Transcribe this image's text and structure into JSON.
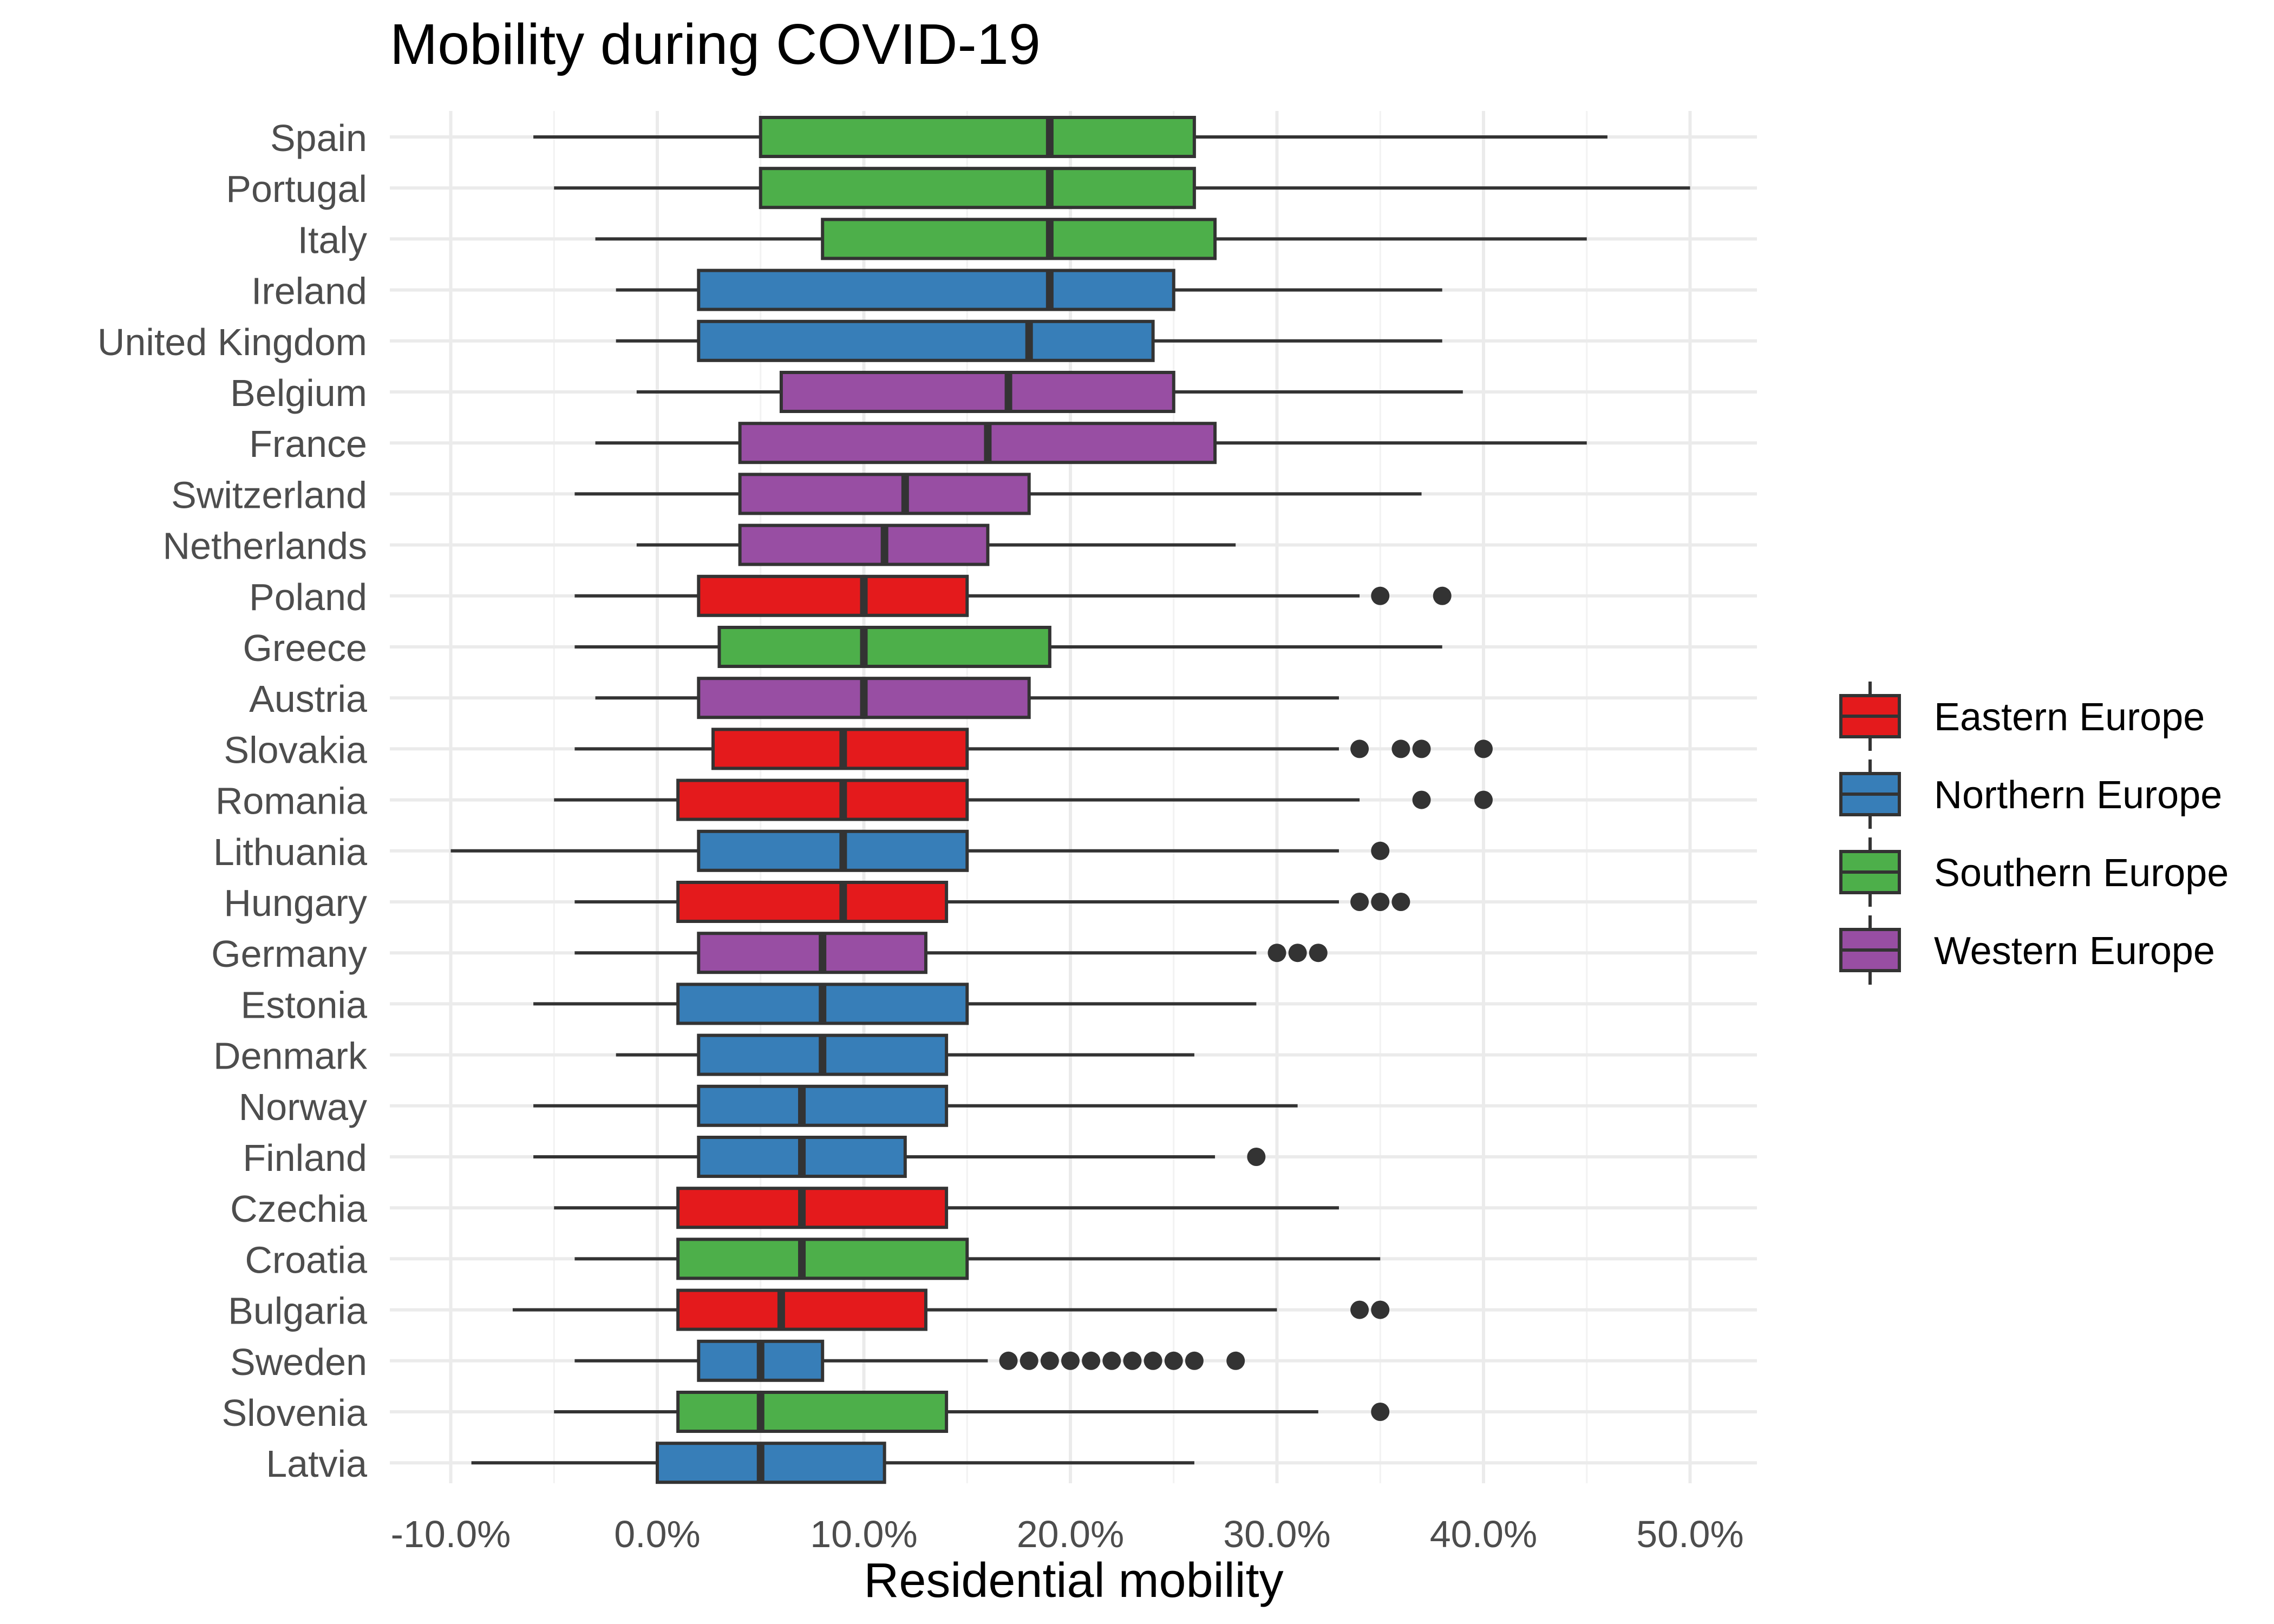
{
  "chart_data": {
    "type": "boxplot",
    "title": "Mobility during COVID-19",
    "xlabel": "Residential mobility",
    "ylabel": "",
    "xlim": [
      -0.13,
      0.53
    ],
    "x_ticks": [
      -0.1,
      0.0,
      0.1,
      0.2,
      0.3,
      0.4,
      0.5
    ],
    "x_tick_labels": [
      "-10.0%",
      "0.0%",
      "10.0%",
      "20.0%",
      "30.0%",
      "40.0%",
      "50.0%"
    ],
    "grid": true,
    "legend_position": "right",
    "groups": [
      {
        "name": "Eastern Europe",
        "color": "#e41a1c"
      },
      {
        "name": "Northern Europe",
        "color": "#377eb8"
      },
      {
        "name": "Southern Europe",
        "color": "#4daf4a"
      },
      {
        "name": "Western Europe",
        "color": "#984ea3"
      }
    ],
    "boxes": [
      {
        "country": "Spain",
        "group": "Southern Europe",
        "whisker_low": -0.06,
        "q1": 0.05,
        "median": 0.19,
        "q3": 0.26,
        "whisker_high": 0.46,
        "outliers": []
      },
      {
        "country": "Portugal",
        "group": "Southern Europe",
        "whisker_low": -0.05,
        "q1": 0.05,
        "median": 0.19,
        "q3": 0.26,
        "whisker_high": 0.5,
        "outliers": []
      },
      {
        "country": "Italy",
        "group": "Southern Europe",
        "whisker_low": -0.03,
        "q1": 0.08,
        "median": 0.19,
        "q3": 0.27,
        "whisker_high": 0.45,
        "outliers": []
      },
      {
        "country": "Ireland",
        "group": "Northern Europe",
        "whisker_low": -0.02,
        "q1": 0.02,
        "median": 0.19,
        "q3": 0.25,
        "whisker_high": 0.38,
        "outliers": []
      },
      {
        "country": "United Kingdom",
        "group": "Northern Europe",
        "whisker_low": -0.02,
        "q1": 0.02,
        "median": 0.18,
        "q3": 0.24,
        "whisker_high": 0.38,
        "outliers": []
      },
      {
        "country": "Belgium",
        "group": "Western Europe",
        "whisker_low": -0.01,
        "q1": 0.06,
        "median": 0.17,
        "q3": 0.25,
        "whisker_high": 0.39,
        "outliers": []
      },
      {
        "country": "France",
        "group": "Western Europe",
        "whisker_low": -0.03,
        "q1": 0.04,
        "median": 0.16,
        "q3": 0.27,
        "whisker_high": 0.45,
        "outliers": []
      },
      {
        "country": "Switzerland",
        "group": "Western Europe",
        "whisker_low": -0.04,
        "q1": 0.04,
        "median": 0.12,
        "q3": 0.18,
        "whisker_high": 0.37,
        "outliers": []
      },
      {
        "country": "Netherlands",
        "group": "Western Europe",
        "whisker_low": -0.01,
        "q1": 0.04,
        "median": 0.11,
        "q3": 0.16,
        "whisker_high": 0.28,
        "outliers": []
      },
      {
        "country": "Poland",
        "group": "Eastern Europe",
        "whisker_low": -0.04,
        "q1": 0.02,
        "median": 0.1,
        "q3": 0.15,
        "whisker_high": 0.34,
        "outliers": [
          0.35,
          0.38
        ]
      },
      {
        "country": "Greece",
        "group": "Southern Europe",
        "whisker_low": -0.04,
        "q1": 0.03,
        "median": 0.1,
        "q3": 0.19,
        "whisker_high": 0.38,
        "outliers": []
      },
      {
        "country": "Austria",
        "group": "Western Europe",
        "whisker_low": -0.03,
        "q1": 0.02,
        "median": 0.1,
        "q3": 0.18,
        "whisker_high": 0.33,
        "outliers": []
      },
      {
        "country": "Slovakia",
        "group": "Eastern Europe",
        "whisker_low": -0.04,
        "q1": 0.027,
        "median": 0.09,
        "q3": 0.15,
        "whisker_high": 0.33,
        "outliers": [
          0.34,
          0.36,
          0.37,
          0.4
        ]
      },
      {
        "country": "Romania",
        "group": "Eastern Europe",
        "whisker_low": -0.05,
        "q1": 0.01,
        "median": 0.09,
        "q3": 0.15,
        "whisker_high": 0.34,
        "outliers": [
          0.37,
          0.4
        ]
      },
      {
        "country": "Lithuania",
        "group": "Northern Europe",
        "whisker_low": -0.1,
        "q1": 0.02,
        "median": 0.09,
        "q3": 0.15,
        "whisker_high": 0.33,
        "outliers": [
          0.35
        ]
      },
      {
        "country": "Hungary",
        "group": "Eastern Europe",
        "whisker_low": -0.04,
        "q1": 0.01,
        "median": 0.09,
        "q3": 0.14,
        "whisker_high": 0.33,
        "outliers": [
          0.34,
          0.35,
          0.36
        ]
      },
      {
        "country": "Germany",
        "group": "Western Europe",
        "whisker_low": -0.04,
        "q1": 0.02,
        "median": 0.08,
        "q3": 0.13,
        "whisker_high": 0.29,
        "outliers": [
          0.3,
          0.31,
          0.32
        ]
      },
      {
        "country": "Estonia",
        "group": "Northern Europe",
        "whisker_low": -0.06,
        "q1": 0.01,
        "median": 0.08,
        "q3": 0.15,
        "whisker_high": 0.29,
        "outliers": []
      },
      {
        "country": "Denmark",
        "group": "Northern Europe",
        "whisker_low": -0.02,
        "q1": 0.02,
        "median": 0.08,
        "q3": 0.14,
        "whisker_high": 0.26,
        "outliers": []
      },
      {
        "country": "Norway",
        "group": "Northern Europe",
        "whisker_low": -0.06,
        "q1": 0.02,
        "median": 0.07,
        "q3": 0.14,
        "whisker_high": 0.31,
        "outliers": []
      },
      {
        "country": "Finland",
        "group": "Northern Europe",
        "whisker_low": -0.06,
        "q1": 0.02,
        "median": 0.07,
        "q3": 0.12,
        "whisker_high": 0.27,
        "outliers": [
          0.29
        ]
      },
      {
        "country": "Czechia",
        "group": "Eastern Europe",
        "whisker_low": -0.05,
        "q1": 0.01,
        "median": 0.07,
        "q3": 0.14,
        "whisker_high": 0.33,
        "outliers": []
      },
      {
        "country": "Croatia",
        "group": "Southern Europe",
        "whisker_low": -0.04,
        "q1": 0.01,
        "median": 0.07,
        "q3": 0.15,
        "whisker_high": 0.35,
        "outliers": []
      },
      {
        "country": "Bulgaria",
        "group": "Eastern Europe",
        "whisker_low": -0.07,
        "q1": 0.01,
        "median": 0.06,
        "q3": 0.13,
        "whisker_high": 0.3,
        "outliers": [
          0.34,
          0.35
        ]
      },
      {
        "country": "Sweden",
        "group": "Northern Europe",
        "whisker_low": -0.04,
        "q1": 0.02,
        "median": 0.05,
        "q3": 0.08,
        "whisker_high": 0.16,
        "outliers": [
          0.17,
          0.18,
          0.19,
          0.2,
          0.21,
          0.22,
          0.23,
          0.24,
          0.25,
          0.26,
          0.28
        ]
      },
      {
        "country": "Slovenia",
        "group": "Southern Europe",
        "whisker_low": -0.05,
        "q1": 0.01,
        "median": 0.05,
        "q3": 0.14,
        "whisker_high": 0.32,
        "outliers": [
          0.35
        ]
      },
      {
        "country": "Latvia",
        "group": "Northern Europe",
        "whisker_low": -0.09,
        "q1": 0.0,
        "median": 0.05,
        "q3": 0.11,
        "whisker_high": 0.26,
        "outliers": []
      }
    ]
  }
}
